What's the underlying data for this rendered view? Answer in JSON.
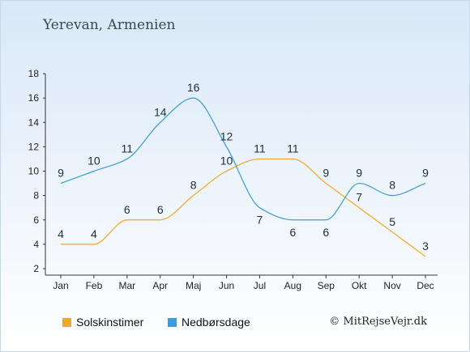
{
  "title": "Yerevan, Armenien",
  "copyright": "© MitRejseVejr.dk",
  "colors": {
    "sun": "#f5a623",
    "rain": "#3d9bdc"
  },
  "chart_data": {
    "type": "line",
    "categories": [
      "Jan",
      "Feb",
      "Mar",
      "Apr",
      "Maj",
      "Jun",
      "Jul",
      "Aug",
      "Sep",
      "Okt",
      "Nov",
      "Dec"
    ],
    "series": [
      {
        "name": "Solskinstimer",
        "values": [
          4,
          4,
          6,
          6,
          8,
          10,
          11,
          11,
          9,
          7,
          5,
          3
        ]
      },
      {
        "name": "Nedbørsdage",
        "values": [
          9,
          10,
          11,
          14,
          16,
          12,
          7,
          6,
          6,
          9,
          8,
          9
        ]
      }
    ],
    "ylim": [
      2,
      18
    ],
    "yticks": [
      2,
      4,
      6,
      8,
      10,
      12,
      14,
      16,
      18
    ],
    "legend_position": "bottom-left"
  }
}
